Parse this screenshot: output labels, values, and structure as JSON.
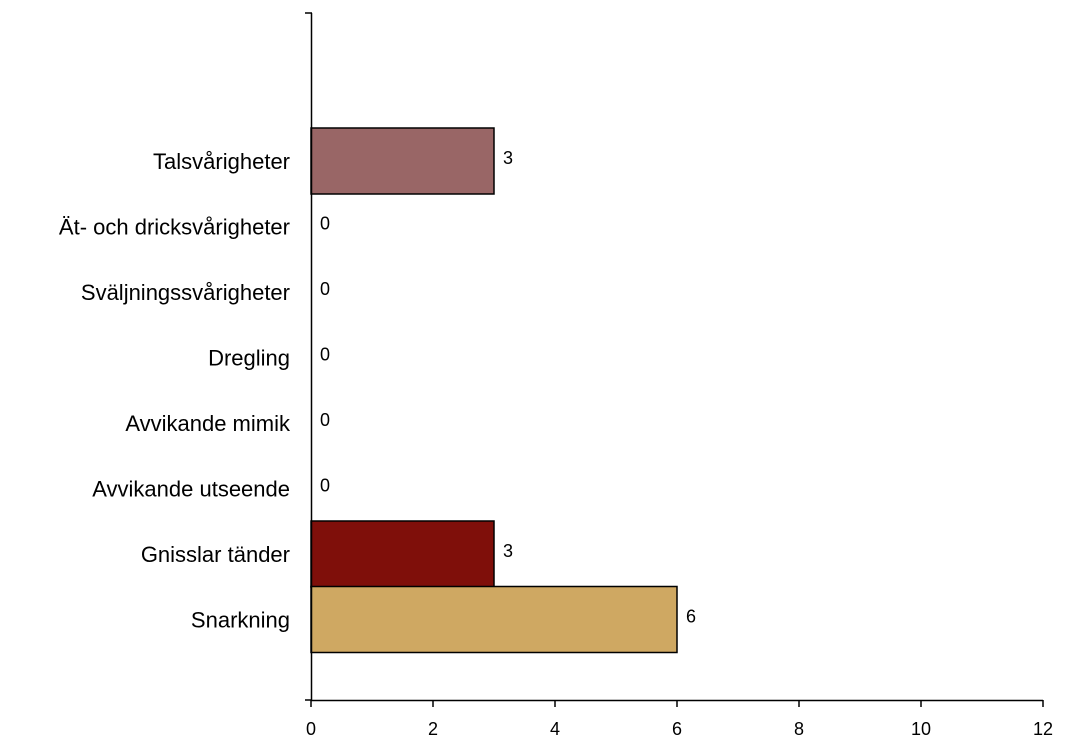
{
  "chart_data": {
    "type": "bar",
    "orientation": "horizontal",
    "categories": [
      "Talsvårigheter",
      "Ät- och dricksvårigheter",
      "Sväljningssvårigheter",
      "Dregling",
      "Avvikande mimik",
      "Avvikande utseende",
      "Gnisslar tänder",
      "Snarkning"
    ],
    "values": [
      3,
      0,
      0,
      0,
      0,
      0,
      3,
      6
    ],
    "value_labels": [
      "3",
      "0",
      "0",
      "0",
      "0",
      "0",
      "3",
      "6"
    ],
    "colors": [
      "#996666",
      "#996666",
      "#996666",
      "#996666",
      "#996666",
      "#996666",
      "#7f0f0a",
      "#cfa862"
    ],
    "xlim": [
      0,
      12
    ],
    "x_ticks": [
      0,
      2,
      4,
      6,
      8,
      10,
      12
    ],
    "x_tick_labels": [
      "0",
      "2",
      "4",
      "6",
      "8",
      "10",
      "12"
    ],
    "grid": false,
    "legend": "none"
  }
}
